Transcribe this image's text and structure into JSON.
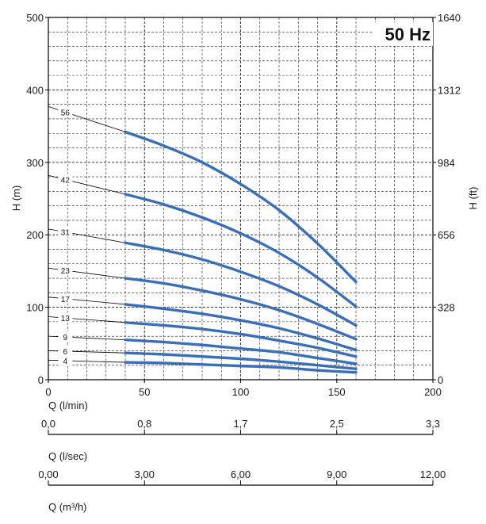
{
  "chart_data": {
    "type": "line",
    "badge": "50 Hz",
    "x_axes": [
      {
        "label": "Q (l/min)",
        "ticks": [
          "0",
          "50",
          "100",
          "150",
          "200"
        ],
        "range": [
          0,
          200
        ]
      },
      {
        "label": "Q (l/sec)",
        "ticks": [
          "0,0",
          "0,8",
          "1,7",
          "2,5",
          "3,3"
        ]
      },
      {
        "label": "Q (m³/h)",
        "ticks": [
          "0,00",
          "3,00",
          "6,00",
          "9,00",
          "12,00"
        ]
      }
    ],
    "y_left": {
      "label": "H (m)",
      "ticks": [
        "0",
        "100",
        "200",
        "300",
        "400",
        "500"
      ],
      "range": [
        0,
        500
      ]
    },
    "y_right": {
      "label": "H (ft)",
      "ticks": [
        "0",
        "328",
        "656",
        "984",
        "1312",
        "1640"
      ]
    },
    "grid": true,
    "series_color": "#3a6fb8",
    "series": [
      {
        "name": "56",
        "x": [
          40,
          60,
          80,
          100,
          120,
          140,
          160
        ],
        "values": [
          342,
          323,
          300,
          270,
          234,
          188,
          135
        ],
        "shutoff": 377
      },
      {
        "name": "42",
        "x": [
          40,
          60,
          80,
          100,
          120,
          140,
          160
        ],
        "values": [
          256,
          242,
          224,
          202,
          175,
          141,
          101
        ],
        "shutoff": 282
      },
      {
        "name": "31",
        "x": [
          40,
          60,
          80,
          100,
          120,
          140,
          160
        ],
        "values": [
          189,
          179,
          166,
          149,
          129,
          104,
          75
        ],
        "shutoff": 208
      },
      {
        "name": "23",
        "x": [
          40,
          60,
          80,
          100,
          120,
          140,
          160
        ],
        "values": [
          140,
          133,
          123,
          111,
          96,
          77,
          56
        ],
        "shutoff": 154
      },
      {
        "name": "17",
        "x": [
          40,
          60,
          80,
          100,
          120,
          140,
          160
        ],
        "values": [
          104,
          98,
          91,
          82,
          71,
          57,
          41
        ],
        "shutoff": 114
      },
      {
        "name": "13",
        "x": [
          40,
          60,
          80,
          100,
          120,
          140,
          160
        ],
        "values": [
          79,
          75,
          70,
          63,
          54,
          44,
          32
        ],
        "shutoff": 87
      },
      {
        "name": "9",
        "x": [
          40,
          60,
          80,
          100,
          120,
          140,
          160
        ],
        "values": [
          55,
          52,
          48,
          43,
          38,
          30,
          22
        ],
        "shutoff": 60
      },
      {
        "name": "6",
        "x": [
          40,
          60,
          80,
          100,
          120,
          140,
          160
        ],
        "values": [
          37,
          35,
          32,
          29,
          25,
          20,
          15
        ],
        "shutoff": 40
      },
      {
        "name": "4",
        "x": [
          40,
          60,
          80,
          100,
          120,
          140,
          160
        ],
        "values": [
          24,
          23,
          21,
          19,
          17,
          13,
          10
        ],
        "shutoff": 27
      }
    ]
  }
}
